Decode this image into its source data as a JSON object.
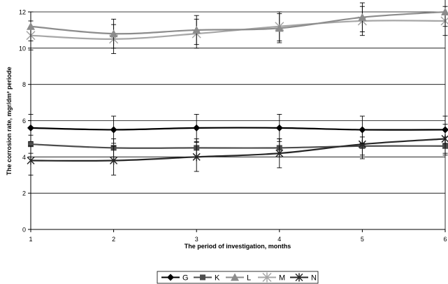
{
  "chart_data": {
    "type": "line",
    "xlabel": "The period of investigation, months",
    "ylabel": "The corrosion rate, mgr/dm² periode",
    "x": [
      1,
      2,
      3,
      4,
      5,
      6
    ],
    "xlim": [
      1,
      6
    ],
    "ylim": [
      0,
      12
    ],
    "y_ticks": [
      0,
      2,
      4,
      6,
      8,
      10,
      12
    ],
    "x_ticks": [
      1,
      2,
      3,
      4,
      5,
      6
    ],
    "grid": "horizontal",
    "legend_position": "bottom",
    "series": [
      {
        "name": "G",
        "marker": "diamond",
        "color": "#000000",
        "width": 2.2,
        "values": [
          5.6,
          5.5,
          5.6,
          5.6,
          5.5,
          5.5
        ],
        "err": [
          0.75,
          0.75,
          0.75,
          0.75,
          0.75,
          0.75
        ]
      },
      {
        "name": "K",
        "marker": "square",
        "color": "#4d4d4d",
        "width": 2.2,
        "values": [
          4.7,
          4.5,
          4.5,
          4.5,
          4.6,
          4.6
        ],
        "err": [
          0.5,
          0.5,
          0.5,
          0.5,
          0.5,
          0.5
        ]
      },
      {
        "name": "L",
        "marker": "triangle",
        "color": "#8c8c8c",
        "width": 2.2,
        "values": [
          11.2,
          10.8,
          11.0,
          11.1,
          11.7,
          12.0
        ],
        "err": [
          0.8,
          0.8,
          0.8,
          0.8,
          0.8,
          0.8
        ]
      },
      {
        "name": "M",
        "marker": "star",
        "color": "#a6a6a6",
        "width": 2.2,
        "values": [
          10.7,
          10.5,
          10.8,
          11.2,
          11.5,
          11.5
        ],
        "err": [
          0.8,
          0.8,
          0.8,
          0.8,
          0.8,
          0.8
        ]
      },
      {
        "name": "N",
        "marker": "cross",
        "color": "#262626",
        "width": 2.2,
        "values": [
          3.8,
          3.8,
          4.0,
          4.2,
          4.7,
          5.0
        ],
        "err": [
          0.8,
          0.8,
          0.8,
          0.8,
          0.8,
          0.8
        ]
      }
    ]
  }
}
